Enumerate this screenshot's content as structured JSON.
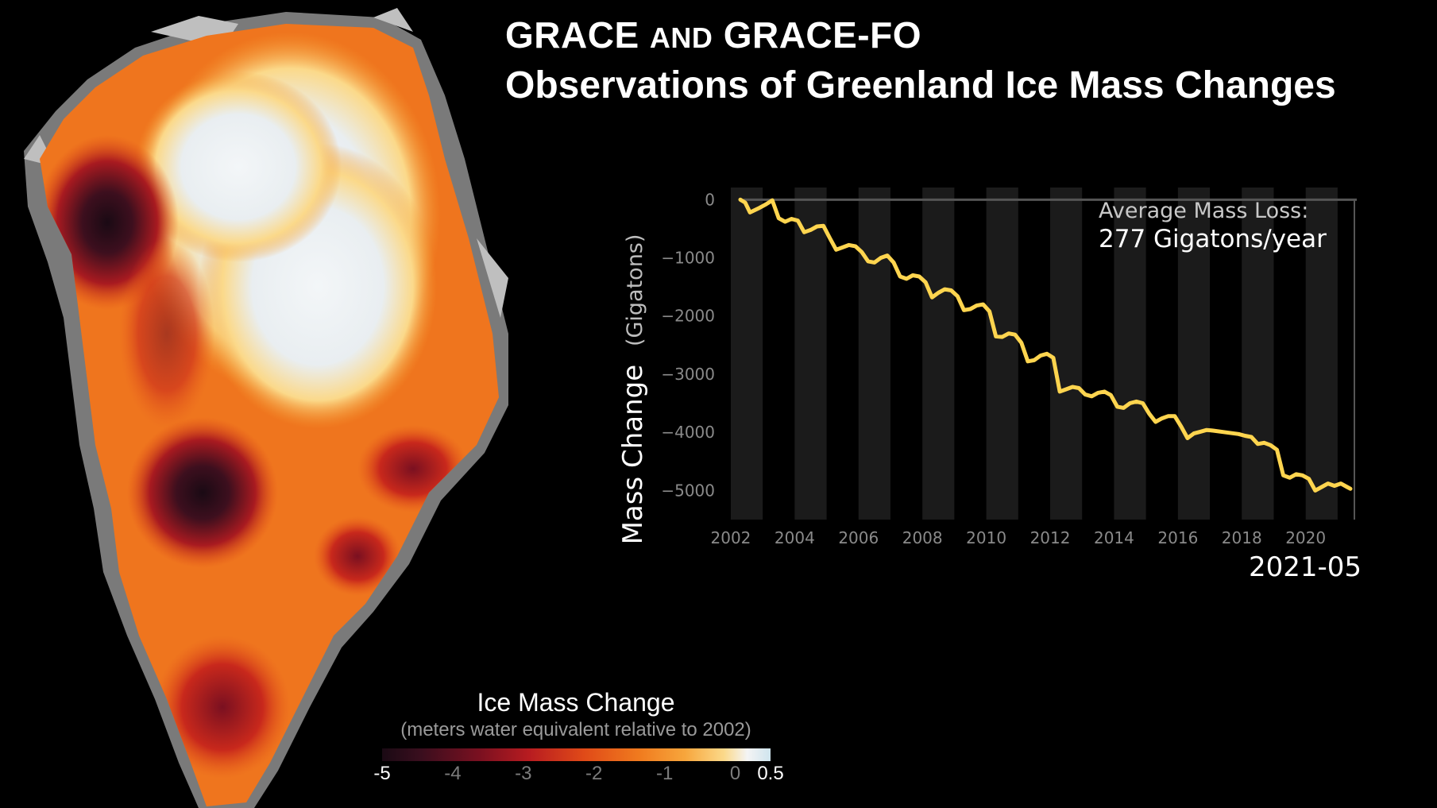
{
  "title": {
    "line1_a": "GRACE",
    "line1_b": "AND",
    "line1_c": "GRACE-FO",
    "line2": "Observations of Greenland Ice Mass Changes"
  },
  "annotation": {
    "label": "Average Mass Loss:",
    "value": "277 Gigatons/year"
  },
  "current_date": "2021-05",
  "legend": {
    "title": "Ice Mass Change",
    "subtitle": "(meters water equivalent relative to 2002)",
    "ticks": [
      "-5",
      "-4",
      "-3",
      "-2",
      "-1",
      "0",
      "0.5"
    ],
    "tick_values": [
      -5,
      -4,
      -3,
      -2,
      -1,
      0,
      0.5
    ]
  },
  "colors": {
    "line": "#ffd54f",
    "band": "#1b1b1b",
    "axis": "#8a8a8a"
  },
  "chart_data": {
    "type": "line",
    "title": "GRACE and GRACE-FO Observations of Greenland Ice Mass Changes",
    "xlabel": "",
    "ylabel_main": "Mass Change",
    "ylabel_unit": "(Gigatons)",
    "xlim": [
      2002.2,
      2021.6
    ],
    "ylim": [
      -5200,
      100
    ],
    "xticks": [
      2002,
      2004,
      2006,
      2008,
      2010,
      2012,
      2014,
      2016,
      2018,
      2020
    ],
    "yticks": [
      0,
      -1000,
      -2000,
      -3000,
      -4000,
      -5000
    ],
    "ytick_labels": [
      "0",
      "−1000",
      "−2000",
      "−3000",
      "−4000",
      "−5000"
    ],
    "series": [
      {
        "name": "Greenland ice mass change",
        "x": [
          2002.3,
          2002.45,
          2002.6,
          2002.75,
          2002.9,
          2003.1,
          2003.3,
          2003.5,
          2003.7,
          2003.9,
          2004.1,
          2004.3,
          2004.5,
          2004.7,
          2004.9,
          2005.1,
          2005.3,
          2005.5,
          2005.7,
          2005.9,
          2006.1,
          2006.3,
          2006.5,
          2006.7,
          2006.9,
          2007.1,
          2007.3,
          2007.5,
          2007.7,
          2007.9,
          2008.1,
          2008.3,
          2008.5,
          2008.7,
          2008.9,
          2009.1,
          2009.3,
          2009.5,
          2009.7,
          2009.9,
          2010.1,
          2010.3,
          2010.5,
          2010.7,
          2010.9,
          2011.1,
          2011.3,
          2011.5,
          2011.7,
          2011.9,
          2012.1,
          2012.3,
          2012.5,
          2012.7,
          2012.9,
          2013.1,
          2013.3,
          2013.5,
          2013.7,
          2013.9,
          2014.1,
          2014.3,
          2014.5,
          2014.7,
          2014.9,
          2015.1,
          2015.3,
          2015.5,
          2015.7,
          2015.9,
          2016.1,
          2016.3,
          2016.5,
          2016.7,
          2016.9,
          2017.1,
          2017.5,
          2017.9,
          2018.1,
          2018.3,
          2018.5,
          2018.7,
          2018.9,
          2019.1,
          2019.3,
          2019.5,
          2019.7,
          2019.9,
          2020.1,
          2020.3,
          2020.5,
          2020.7,
          2020.9,
          2021.1,
          2021.3,
          2021.4
        ],
        "values": [
          0,
          -50,
          -220,
          -180,
          -140,
          -80,
          -10,
          -320,
          -380,
          -330,
          -360,
          -560,
          -520,
          -460,
          -450,
          -660,
          -860,
          -820,
          -780,
          -800,
          -900,
          -1060,
          -1080,
          -1000,
          -960,
          -1080,
          -1320,
          -1360,
          -1300,
          -1320,
          -1420,
          -1680,
          -1600,
          -1540,
          -1560,
          -1660,
          -1900,
          -1880,
          -1820,
          -1800,
          -1920,
          -2350,
          -2360,
          -2300,
          -2320,
          -2460,
          -2780,
          -2760,
          -2680,
          -2650,
          -2720,
          -3300,
          -3260,
          -3220,
          -3240,
          -3350,
          -3380,
          -3320,
          -3300,
          -3360,
          -3560,
          -3580,
          -3500,
          -3470,
          -3500,
          -3680,
          -3820,
          -3760,
          -3720,
          -3720,
          -3900,
          -4100,
          -4020,
          -3990,
          -3960,
          -3970,
          -4000,
          -4030,
          -4060,
          -4080,
          -4200,
          -4180,
          -4220,
          -4300,
          -4740,
          -4780,
          -4720,
          -4740,
          -4800,
          -5000,
          -4940,
          -4880,
          -4920,
          -4880,
          -4940,
          -4970
        ]
      }
    ]
  }
}
